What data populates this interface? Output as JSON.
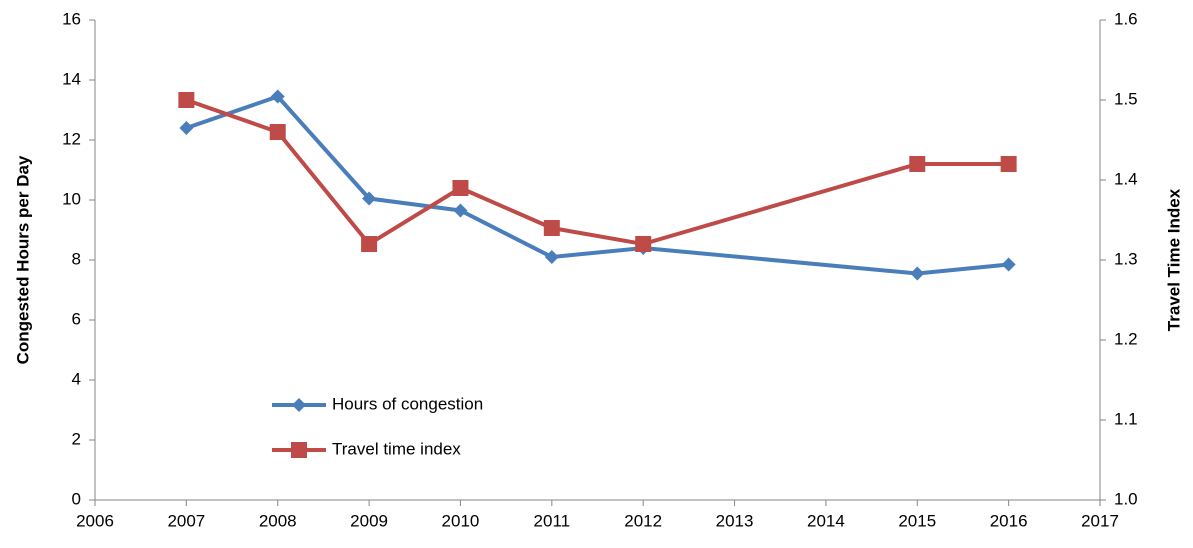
{
  "chart_data": {
    "type": "line",
    "x": [
      2007,
      2008,
      2009,
      2010,
      2011,
      2012,
      2015,
      2016
    ],
    "series": [
      {
        "name": "Hours of congestion",
        "color": "#4a7ebb",
        "marker": "diamond",
        "values": [
          12.4,
          13.45,
          10.05,
          9.65,
          8.1,
          8.4,
          7.55,
          7.85
        ]
      },
      {
        "name": "Travel time index",
        "color": "#be4b48",
        "marker": "square",
        "axis": "y2",
        "values": [
          1.5,
          1.46,
          1.32,
          1.39,
          1.34,
          1.32,
          1.42,
          1.42
        ]
      }
    ],
    "y_label": "Congested Hours per Day",
    "y2_label": "Travel Time Index",
    "xlim": [
      2006,
      2017
    ],
    "xticks": [
      2006,
      2007,
      2008,
      2009,
      2010,
      2011,
      2012,
      2013,
      2014,
      2015,
      2016,
      2017
    ],
    "ylim": [
      0,
      16
    ],
    "yticks": [
      0,
      2,
      4,
      6,
      8,
      10,
      12,
      14,
      16
    ],
    "y2lim": [
      1,
      1.6
    ],
    "y2ticks": [
      {
        "value": 1,
        "label": "1.0"
      },
      1.1,
      1.2,
      1.3,
      1.4,
      1.5,
      1.6
    ],
    "grid": false
  }
}
